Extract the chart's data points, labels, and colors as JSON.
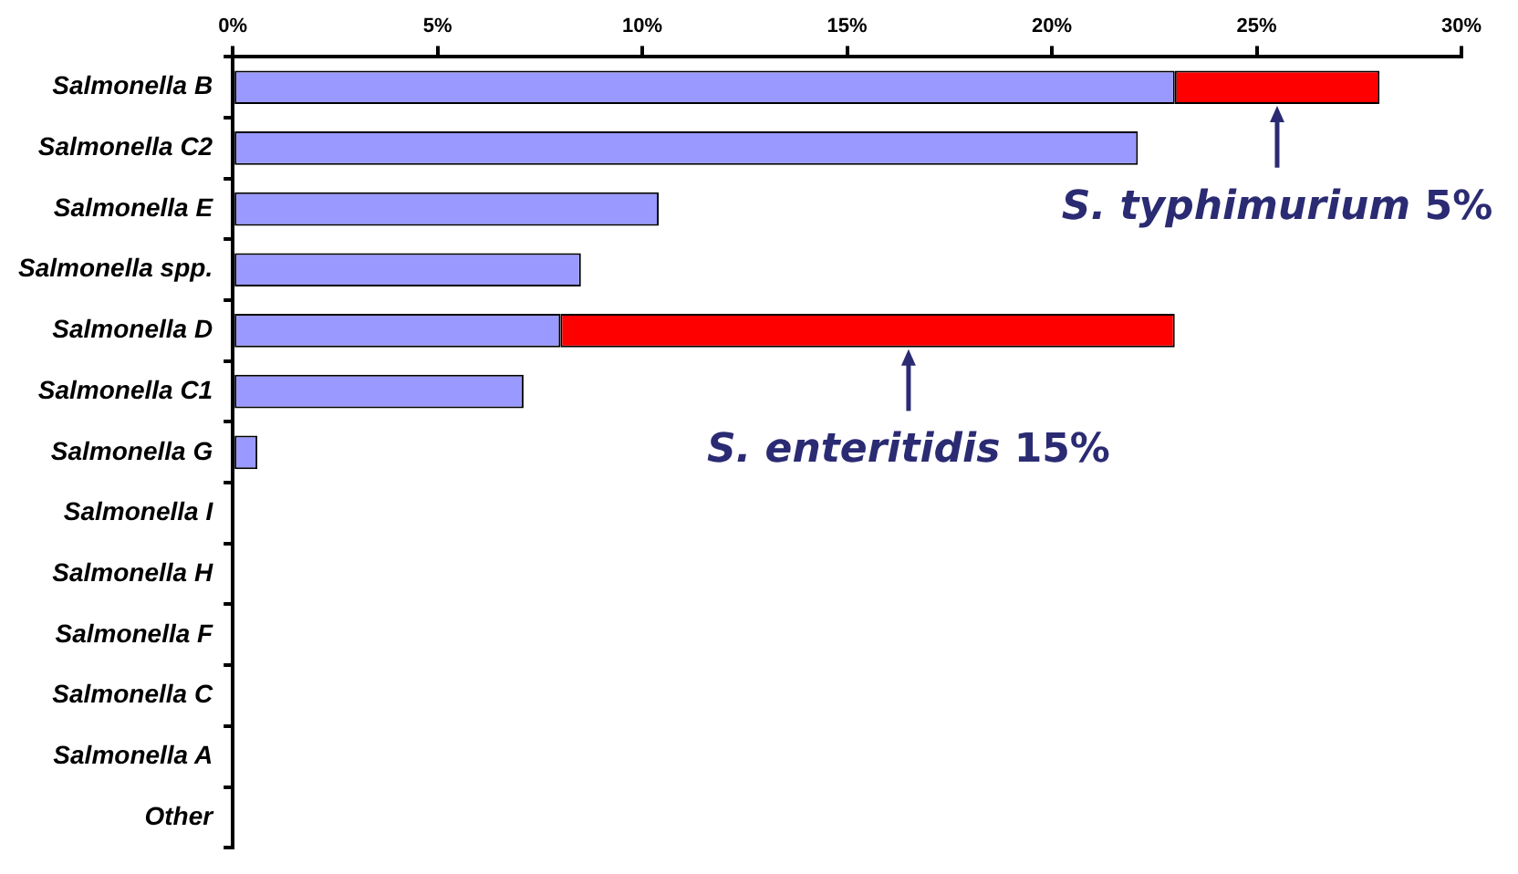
{
  "chart_data": {
    "type": "bar",
    "orientation": "horizontal",
    "stacked": true,
    "grid": false,
    "legend": false,
    "categories": [
      "Salmonella B",
      "Salmonella C2",
      "Salmonella E",
      "Salmonella spp.",
      "Salmonella D",
      "Salmonella C1",
      "Salmonella G",
      "Salmonella I",
      "Salmonella H",
      "Salmonella F",
      "Salmonella C",
      "Salmonella A",
      "Other"
    ],
    "series": [
      {
        "color": "#9999ff",
        "values": [
          23,
          22.1,
          10.4,
          8.5,
          8,
          7.1,
          0.6,
          0,
          0,
          0,
          0,
          0,
          0
        ]
      },
      {
        "color": "#ff0000",
        "values": [
          5,
          null,
          null,
          null,
          15,
          null,
          null,
          null,
          null,
          null,
          null,
          null,
          null
        ]
      }
    ],
    "xlim": [
      0,
      30
    ],
    "xticks": [
      {
        "value": 0,
        "label": "0%"
      },
      {
        "value": 5,
        "label": "5%"
      },
      {
        "value": 10,
        "label": "10%"
      },
      {
        "value": 15,
        "label": "15%"
      },
      {
        "value": 20,
        "label": "20%"
      },
      {
        "value": 25,
        "label": "25%"
      },
      {
        "value": 30,
        "label": "30%"
      }
    ],
    "annotations": [
      {
        "text": "S. typhimurium 5%",
        "x": 25.5,
        "y": "Salmonella B"
      },
      {
        "text": "S. enteritidis 15%",
        "x": 16.5,
        "y": "Salmonella D"
      }
    ]
  }
}
